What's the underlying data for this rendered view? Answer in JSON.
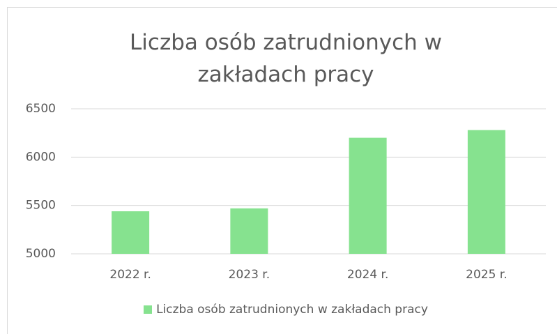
{
  "chart_data": {
    "type": "bar",
    "title": "Liczba osób zatrudnionych w zakładach pracy",
    "categories": [
      "2022 r.",
      "2023 r.",
      "2024 r.",
      "2025 r."
    ],
    "series": [
      {
        "name": "Liczba osób zatrudnionych w zakładach pracy",
        "color": "#86e28f",
        "values": [
          5440,
          5470,
          6200,
          6280
        ]
      }
    ],
    "ylim": [
      5000,
      6500
    ],
    "yticks": [
      5000,
      5500,
      6000,
      6500
    ],
    "grid": true,
    "legend": "bottom"
  }
}
